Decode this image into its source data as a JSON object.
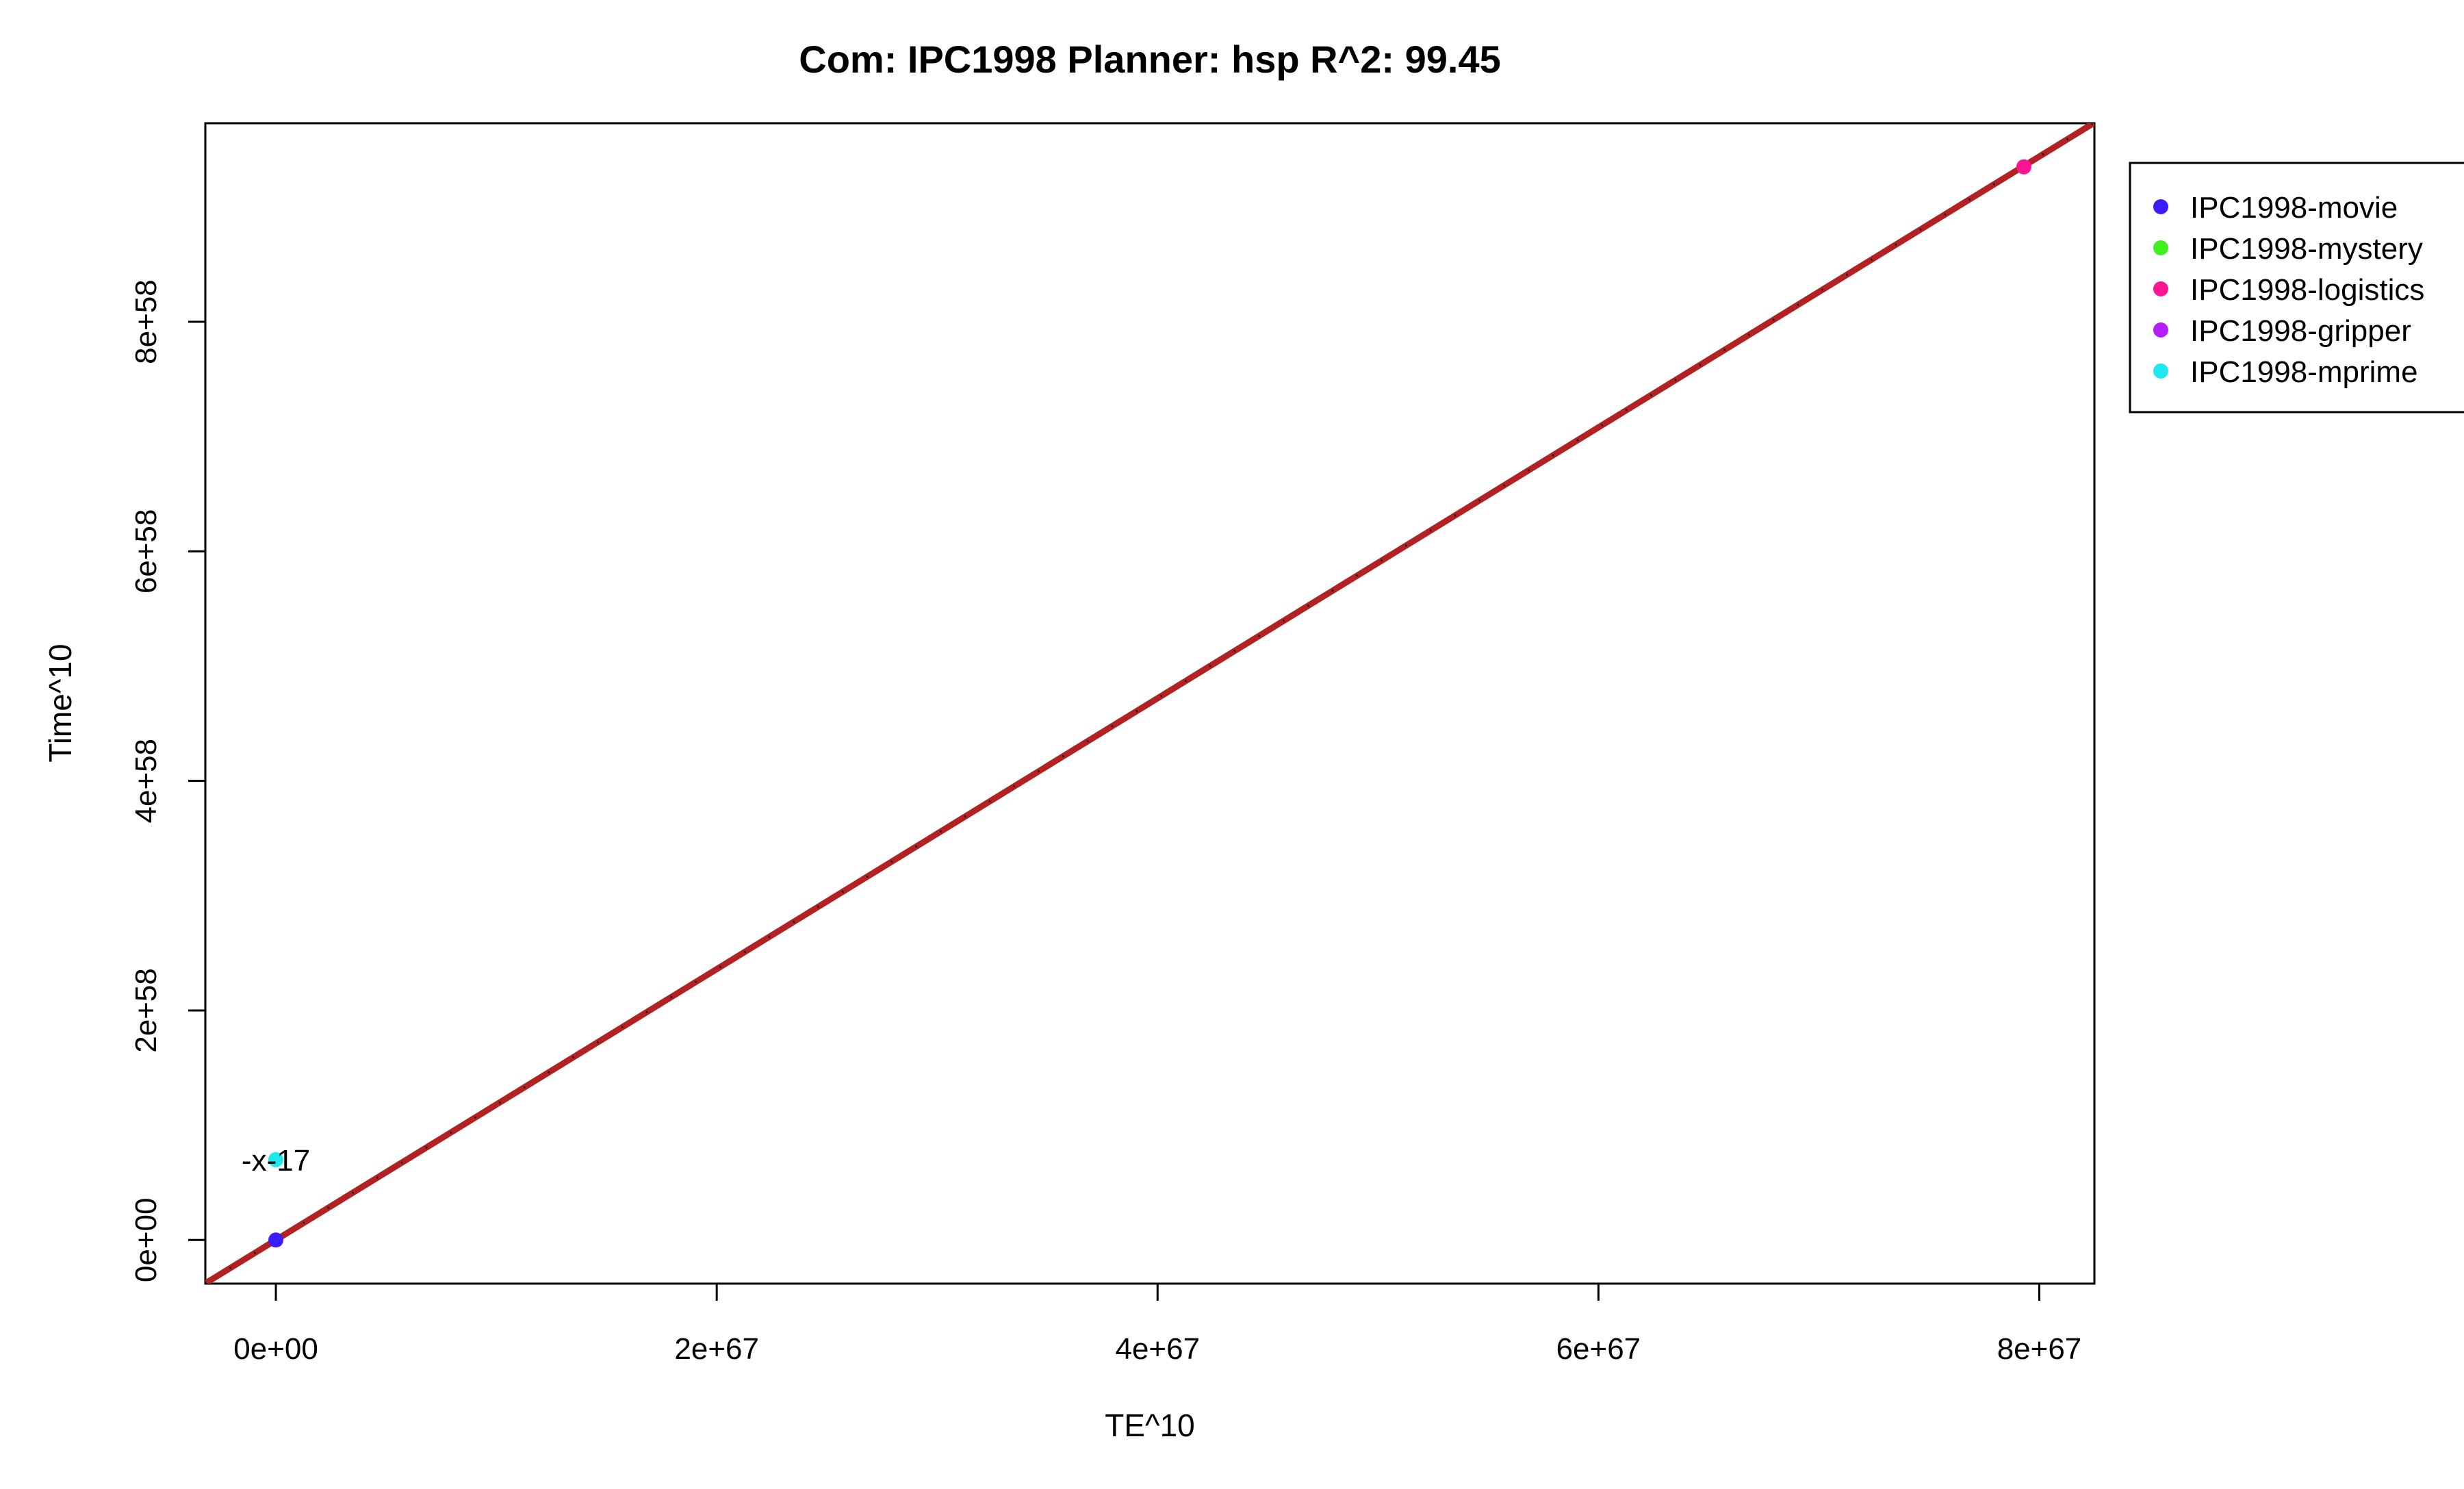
{
  "chart_data": {
    "type": "scatter",
    "title": "Com: IPC1998 Planner: hsp R^2: 99.45",
    "xlabel": "TE^10",
    "ylabel": "Time^10",
    "xlim": [
      -3.2e+66,
      8.25e+67
    ],
    "ylim": [
      -3.8e+57,
      9.73e+58
    ],
    "x_ticks": [
      {
        "value": 0,
        "label": "0e+00"
      },
      {
        "value": 2e+67,
        "label": "2e+67"
      },
      {
        "value": 4e+67,
        "label": "4e+67"
      },
      {
        "value": 6e+67,
        "label": "6e+67"
      },
      {
        "value": 8e+67,
        "label": "8e+67"
      }
    ],
    "y_ticks": [
      {
        "value": 0,
        "label": "0e+00"
      },
      {
        "value": 2e+58,
        "label": "2e+58"
      },
      {
        "value": 4e+58,
        "label": "4e+58"
      },
      {
        "value": 6e+58,
        "label": "6e+58"
      },
      {
        "value": 8e+58,
        "label": "8e+58"
      }
    ],
    "series": [
      {
        "name": "IPC1998-movie",
        "color": "#3b1dff",
        "points": [
          {
            "x": 0,
            "y": 0
          }
        ]
      },
      {
        "name": "IPC1998-mystery",
        "color": "#3fef1f",
        "points": []
      },
      {
        "name": "IPC1998-logistics",
        "color": "#ff1493",
        "points": [
          {
            "x": 7.93e+67,
            "y": 9.35e+58
          }
        ]
      },
      {
        "name": "IPC1998-gripper",
        "color": "#b41eff",
        "points": []
      },
      {
        "name": "IPC1998-mprime",
        "color": "#1ee8ee",
        "points": [
          {
            "x": 0,
            "y": 7e+57
          }
        ]
      }
    ],
    "annotations": [
      {
        "text": "-x-17",
        "x": 0,
        "y": 7e+57
      }
    ],
    "fit_line": {
      "slope": 1.18e-09,
      "intercept": 0,
      "color": "#b22222",
      "overlay_color": "#000000",
      "overlay_style": "dashed"
    },
    "legend_position": "top-right, outside plot area",
    "grid": false
  }
}
